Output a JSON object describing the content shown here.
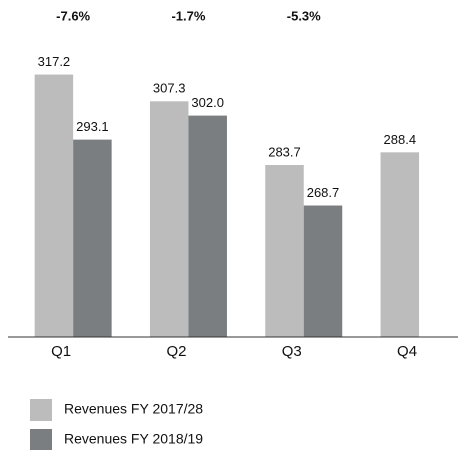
{
  "chart_data": {
    "type": "bar",
    "categories": [
      "Q1",
      "Q2",
      "Q3",
      "Q4"
    ],
    "series": [
      {
        "name": "Revenues FY 2017/28",
        "color": "#bcbcbc",
        "values": [
          317.2,
          307.3,
          283.7,
          288.4
        ],
        "value_labels": [
          "317.2",
          "307.3",
          "283.7",
          "288.4"
        ]
      },
      {
        "name": "Revenues FY 2018/19",
        "color": "#7b7e81",
        "values": [
          293.1,
          302.0,
          268.7,
          null
        ],
        "value_labels": [
          "293.1",
          "302.0",
          "268.7",
          null
        ]
      }
    ],
    "annotations": [
      "-7.6%",
      "-1.7%",
      "-5.3%"
    ],
    "ylim": [
      220,
      330
    ]
  }
}
